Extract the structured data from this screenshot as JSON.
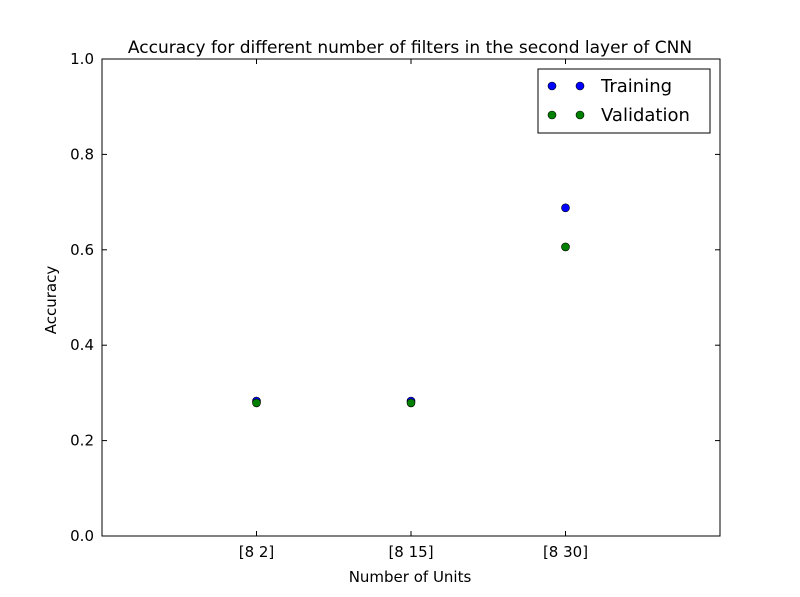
{
  "chart_data": {
    "type": "scatter",
    "title": "Accuracy for different number of filters in the second layer of CNN",
    "xlabel": "Number of Units",
    "ylabel": "Accuracy",
    "categories": [
      "[8 2]",
      "[8 15]",
      "[8 30]"
    ],
    "ylim": [
      0.0,
      1.0
    ],
    "yticks": [
      "0.0",
      "0.2",
      "0.4",
      "0.6",
      "0.8",
      "1.0"
    ],
    "grid": false,
    "legend_position": "top-right",
    "series": [
      {
        "name": "Training",
        "color": "#0000ff",
        "values": [
          0.283,
          0.283,
          0.688
        ]
      },
      {
        "name": "Validation",
        "color": "#008000",
        "values": [
          0.279,
          0.279,
          0.606
        ]
      }
    ]
  }
}
